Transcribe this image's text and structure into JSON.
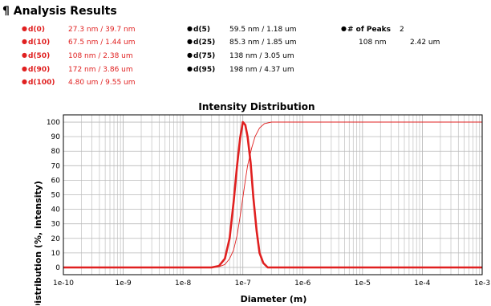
{
  "header": {
    "title": "¶ Analysis Results"
  },
  "results_left": [
    {
      "label": "d(0)",
      "value": "27.3 nm / 39.7 nm"
    },
    {
      "label": "d(10)",
      "value": "67.5 nm / 1.44 um"
    },
    {
      "label": "d(50)",
      "value": "108 nm / 2.38 um"
    },
    {
      "label": "d(90)",
      "value": "172 nm / 3.86 um"
    },
    {
      "label": "d(100)",
      "value": "4.80 um / 9.55 um"
    }
  ],
  "results_mid": [
    {
      "label": "d(5)",
      "value": "59.5 nm / 1.18 um"
    },
    {
      "label": "d(25)",
      "value": "85.3 nm / 1.85 um"
    },
    {
      "label": "d(75)",
      "value": "138 nm / 3.05 um"
    },
    {
      "label": "d(95)",
      "value": "198 nm / 4.37 um"
    }
  ],
  "peaks": {
    "label": "# of Peaks",
    "count": "2",
    "peak_pos": "108 nm",
    "peak_width": "2.42 um"
  },
  "colors": {
    "accent": "#e02020",
    "curve": "#e02020"
  },
  "chart_data": {
    "type": "line",
    "title": "Intensity Distribution",
    "xlabel": "Diameter (m)",
    "ylabel": "Distribution (%, intensity)",
    "xscale": "log",
    "xlim": [
      1e-10,
      0.001
    ],
    "ylim": [
      -5,
      105
    ],
    "xtick_labels": [
      "1e-10",
      "1e-9",
      "1e-8",
      "1e-7",
      "1e-6",
      "1e-5",
      "1e-4",
      "1e-3"
    ],
    "ytick_labels": [
      "0",
      "10",
      "20",
      "30",
      "40",
      "50",
      "60",
      "70",
      "80",
      "90",
      "100"
    ],
    "grid": true,
    "series": [
      {
        "values": [
          [
            1e-10,
            0
          ],
          [
            3e-08,
            0
          ],
          [
            4e-08,
            1
          ],
          [
            5e-08,
            6
          ],
          [
            6e-08,
            20
          ],
          [
            7e-08,
            45
          ],
          [
            8e-08,
            70
          ],
          [
            9e-08,
            89
          ],
          [
            1e-07,
            100
          ],
          [
            1.1e-07,
            98
          ],
          [
            1.2e-07,
            90
          ],
          [
            1.35e-07,
            72
          ],
          [
            1.5e-07,
            48
          ],
          [
            1.7e-07,
            25
          ],
          [
            1.9e-07,
            10
          ],
          [
            2.2e-07,
            3
          ],
          [
            2.6e-07,
            0
          ],
          [
            0.001,
            0
          ]
        ]
      },
      {
        "values": [
          [
            1e-10,
            0
          ],
          [
            3e-08,
            0
          ],
          [
            4e-08,
            0.5
          ],
          [
            5e-08,
            2
          ],
          [
            6e-08,
            6
          ],
          [
            7e-08,
            12
          ],
          [
            8e-08,
            22
          ],
          [
            9e-08,
            35
          ],
          [
            1e-07,
            48
          ],
          [
            1.1e-07,
            60
          ],
          [
            1.2e-07,
            70
          ],
          [
            1.4e-07,
            82
          ],
          [
            1.6e-07,
            90
          ],
          [
            1.9e-07,
            96
          ],
          [
            2.3e-07,
            99
          ],
          [
            3e-07,
            100
          ],
          [
            0.001,
            100
          ]
        ]
      }
    ]
  }
}
